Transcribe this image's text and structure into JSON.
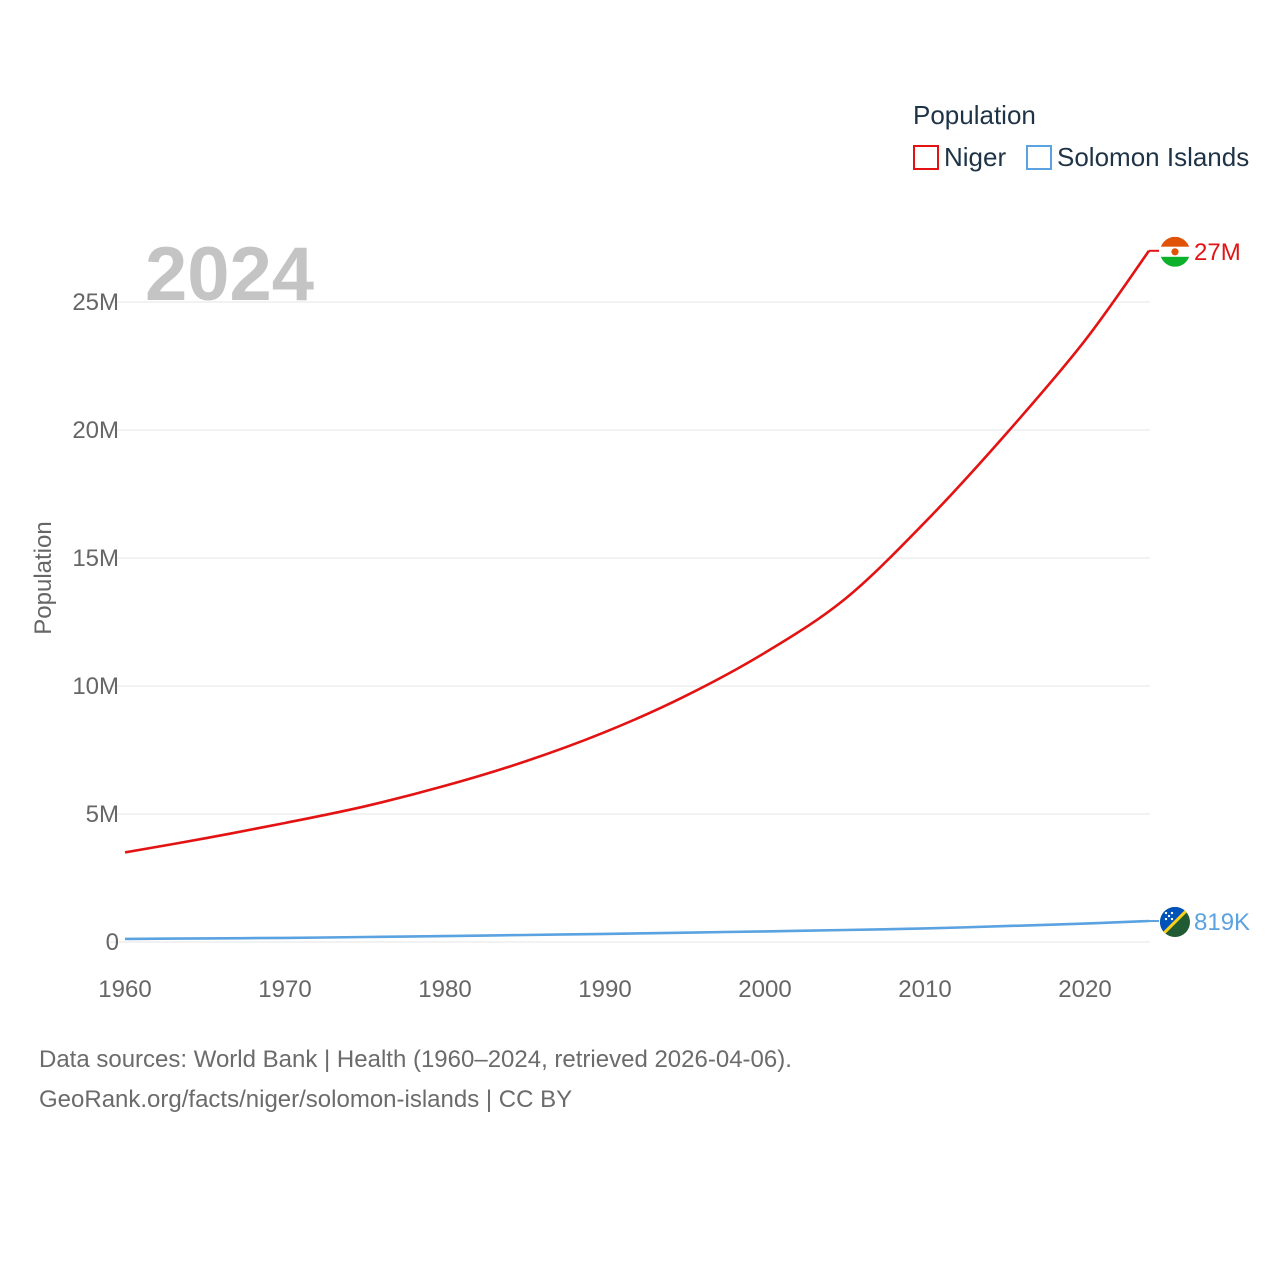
{
  "colors": {
    "niger": "#e31313",
    "solomon": "#5aa2e0"
  },
  "icons": {
    "niger_end_marker": "niger-flag-icon",
    "solomon_end_marker": "solomon-islands-flag-icon"
  },
  "chart_data": {
    "type": "line",
    "year_label": "2024",
    "legend": {
      "title": "Population",
      "position": "top-right"
    },
    "ylabel": "Population",
    "xlabel": "",
    "xlim": [
      1960,
      2024
    ],
    "ylim": [
      0,
      27500000
    ],
    "x_ticks": [
      1960,
      1970,
      1980,
      1990,
      2000,
      2010,
      2020
    ],
    "x_tick_labels": [
      "1960",
      "1970",
      "1980",
      "1990",
      "2000",
      "2010",
      "2020"
    ],
    "y_ticks": [
      0,
      5000000,
      10000000,
      15000000,
      20000000,
      25000000
    ],
    "y_tick_labels": [
      "0",
      "5M",
      "10M",
      "15M",
      "20M",
      "25M"
    ],
    "x": [
      1960,
      1965,
      1970,
      1975,
      1980,
      1985,
      1990,
      1995,
      2000,
      2005,
      2010,
      2015,
      2020,
      2024
    ],
    "series": [
      {
        "name": "Niger",
        "end_label": "27M",
        "values": [
          3500000,
          4050000,
          4650000,
          5300000,
          6100000,
          7050000,
          8200000,
          9600000,
          11300000,
          13400000,
          16400000,
          19800000,
          23500000,
          27000000
        ]
      },
      {
        "name": "Solomon Islands",
        "end_label": "819K",
        "values": [
          120000,
          140000,
          160000,
          195000,
          230000,
          275000,
          315000,
          365000,
          415000,
          470000,
          530000,
          620000,
          720000,
          819000
        ]
      }
    ]
  },
  "footer": {
    "line1": "Data sources: World Bank | Health (1960–2024, retrieved 2026-04-06).",
    "line2": "GeoRank.org/facts/niger/solomon-islands | CC BY"
  }
}
